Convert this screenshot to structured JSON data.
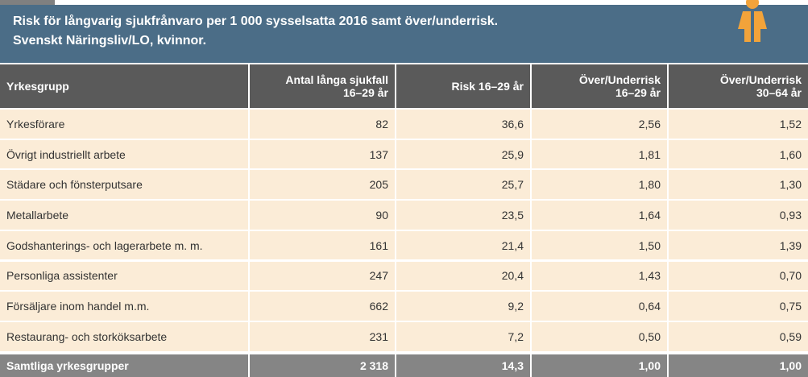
{
  "title": [
    "Risk för långvarig sjukfrånvaro per 1 000 sysselsatta 2016 samt över/underrisk.",
    "Svenskt Näringsliv/LO, kvinnor."
  ],
  "table": {
    "header": [
      [
        "Yrkesgrupp"
      ],
      [
        "Antal långa sjukfall",
        "16–29 år"
      ],
      [
        "Risk 16–29 år"
      ],
      [
        "Över/Underrisk",
        "16–29 år"
      ],
      [
        "Över/Underrisk",
        "30–64 år"
      ]
    ],
    "rows": [
      [
        "Yrkesförare",
        "82",
        "36,6",
        "2,56",
        "1,52"
      ],
      [
        "Övrigt industriellt arbete",
        "137",
        "25,9",
        "1,81",
        "1,60"
      ],
      [
        "Städare och fönsterputsare",
        "205",
        "25,7",
        "1,80",
        "1,30"
      ],
      [
        "Metallarbete",
        "90",
        "23,5",
        "1,64",
        "0,93"
      ],
      [
        "Godshanterings- och lagerarbete m. m.",
        "161",
        "21,4",
        "1,50",
        "1,39"
      ],
      [
        "Personliga assistenter",
        "247",
        "20,4",
        "1,43",
        "0,70"
      ],
      [
        "Försäljare inom handel m.m.",
        "662",
        "9,2",
        "0,64",
        "0,75"
      ],
      [
        "Restaurang- och storköksarbete",
        "231",
        "7,2",
        "0,50",
        "0,59"
      ]
    ],
    "footer": [
      "Samtliga yrkesgrupper",
      "2 318",
      "14,3",
      "1,00",
      "1,00"
    ]
  }
}
